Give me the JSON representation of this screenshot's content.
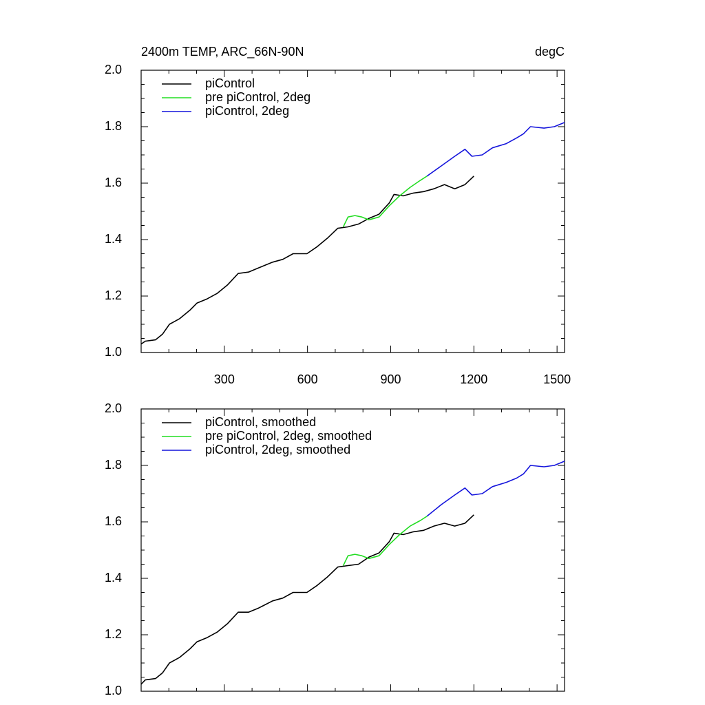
{
  "chart_data": [
    {
      "type": "line",
      "title": "2400m TEMP, ARC_66N-90N",
      "units": "degC",
      "xlim": [
        0,
        1527
      ],
      "xticks": [
        300,
        600,
        900,
        1200,
        1500
      ],
      "ylim": [
        1.0,
        2.0
      ],
      "yticks": [
        {
          "value": 1.0,
          "label": "1.0"
        },
        1.2,
        1.4,
        1.6,
        1.8,
        {
          "value": 2.0,
          "label": "2.0"
        }
      ],
      "legend": "top-left",
      "series": [
        {
          "name": "piControl",
          "color": "#000000",
          "x": [
            0,
            15,
            52,
            77,
            102,
            139,
            176,
            201,
            238,
            275,
            312,
            350,
            387,
            424,
            474,
            511,
            548,
            598,
            635,
            672,
            709,
            746,
            784,
            821,
            858,
            895,
            912,
            945,
            982,
            1019,
            1056,
            1094,
            1131,
            1168,
            1200
          ],
          "values": [
            1.03,
            1.04,
            1.045,
            1.065,
            1.1,
            1.12,
            1.15,
            1.175,
            1.19,
            1.21,
            1.24,
            1.28,
            1.285,
            1.3,
            1.32,
            1.33,
            1.35,
            1.35,
            1.375,
            1.405,
            1.44,
            1.445,
            1.455,
            1.475,
            1.49,
            1.53,
            1.56,
            1.555,
            1.565,
            1.57,
            1.58,
            1.595,
            1.58,
            1.595,
            1.625
          ]
        },
        {
          "name": "pre piControl, 2deg",
          "color": "#22dd22",
          "x": [
            729,
            746,
            771,
            796,
            821,
            858,
            895,
            932,
            970,
            1007,
            1031
          ],
          "values": [
            1.445,
            1.48,
            1.485,
            1.48,
            1.47,
            1.48,
            1.52,
            1.555,
            1.585,
            1.61,
            1.625
          ]
        },
        {
          "name": "piControl, 2deg",
          "color": "#1414dc",
          "x": [
            1031,
            1081,
            1131,
            1168,
            1193,
            1230,
            1267,
            1317,
            1354,
            1379,
            1404,
            1453,
            1490,
            1527
          ],
          "values": [
            1.625,
            1.66,
            1.695,
            1.72,
            1.695,
            1.7,
            1.725,
            1.74,
            1.76,
            1.775,
            1.8,
            1.795,
            1.8,
            1.815
          ]
        }
      ]
    },
    {
      "type": "line",
      "xlim": [
        0,
        1527
      ],
      "ylim": [
        1.0,
        2.0
      ],
      "yticks": [
        {
          "value": 1.0,
          "label": "1.0"
        },
        1.2,
        1.4,
        1.6,
        1.8,
        {
          "value": 2.0,
          "label": "2.0"
        }
      ],
      "legend": "top-left",
      "series": [
        {
          "name": "piControl, smoothed",
          "color": "#000000",
          "x": [
            0,
            15,
            52,
            77,
            102,
            139,
            176,
            201,
            238,
            275,
            312,
            350,
            387,
            424,
            474,
            511,
            548,
            598,
            635,
            672,
            709,
            746,
            784,
            821,
            858,
            895,
            912,
            945,
            982,
            1019,
            1056,
            1094,
            1131,
            1168,
            1200
          ],
          "values": [
            1.025,
            1.04,
            1.045,
            1.065,
            1.1,
            1.12,
            1.15,
            1.175,
            1.19,
            1.21,
            1.24,
            1.28,
            1.28,
            1.295,
            1.32,
            1.33,
            1.35,
            1.35,
            1.375,
            1.405,
            1.44,
            1.445,
            1.45,
            1.475,
            1.49,
            1.53,
            1.56,
            1.555,
            1.565,
            1.57,
            1.585,
            1.595,
            1.585,
            1.595,
            1.625
          ]
        },
        {
          "name": "pre piControl, 2deg, smoothed",
          "color": "#22dd22",
          "x": [
            729,
            746,
            771,
            796,
            821,
            858,
            895,
            932,
            970,
            1007,
            1031
          ],
          "values": [
            1.445,
            1.48,
            1.485,
            1.48,
            1.47,
            1.48,
            1.52,
            1.555,
            1.585,
            1.605,
            1.62
          ]
        },
        {
          "name": "piControl, 2deg, smoothed",
          "color": "#1414dc",
          "x": [
            1031,
            1081,
            1131,
            1168,
            1193,
            1230,
            1267,
            1317,
            1354,
            1379,
            1404,
            1453,
            1490,
            1527
          ],
          "values": [
            1.62,
            1.66,
            1.695,
            1.72,
            1.695,
            1.7,
            1.725,
            1.74,
            1.755,
            1.77,
            1.8,
            1.795,
            1.8,
            1.815
          ]
        }
      ]
    }
  ]
}
